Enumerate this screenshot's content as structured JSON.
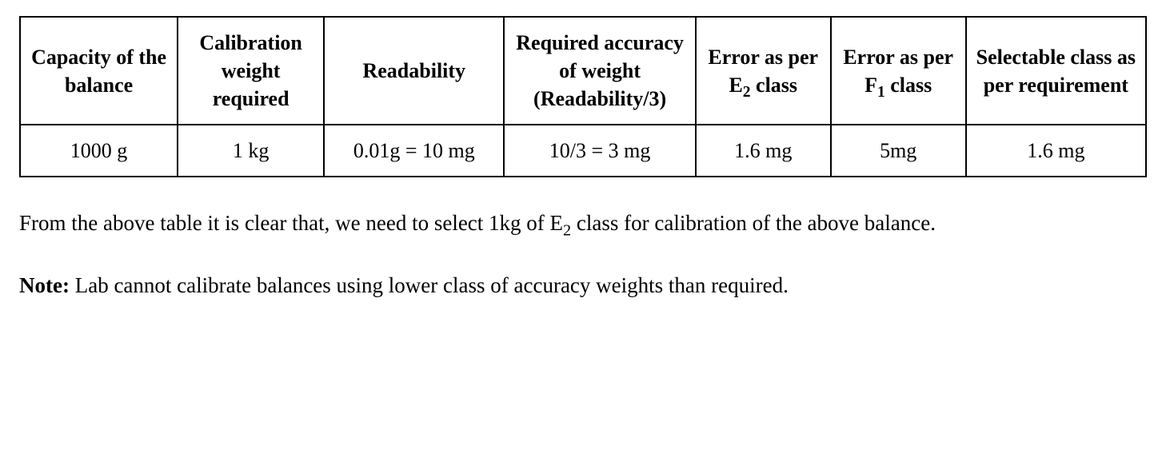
{
  "table": {
    "columns": [
      {
        "header_html": "Capacity of the balance"
      },
      {
        "header_html": "Calibration weight required"
      },
      {
        "header_html": "Readability"
      },
      {
        "header_html": "Required accuracy of weight (Readability/3)"
      },
      {
        "header_html": "Error as per  E<sub>2</sub> class"
      },
      {
        "header_html": "Error as per F<sub>1</sub> class"
      },
      {
        "header_html": "Selectable class as per requirement"
      }
    ],
    "rows": [
      [
        "1000 g",
        "1 kg",
        "0.01g  = 10 mg",
        "10/3 = 3 mg",
        "1.6 mg",
        "5mg",
        "1.6 mg"
      ]
    ],
    "border_color": "#000000",
    "background_color": "#ffffff",
    "header_fontsize": 26,
    "cell_fontsize": 26
  },
  "paragraph_html": "From the above table it is clear that, we need to select 1kg of E<sub>2</sub> class for calibration of the above balance.",
  "note": {
    "label": "Note:",
    "text": " Lab cannot calibrate balances using lower class of accuracy weights than required."
  },
  "colors": {
    "text": "#000000",
    "background": "#ffffff"
  },
  "font_family": "Times New Roman"
}
